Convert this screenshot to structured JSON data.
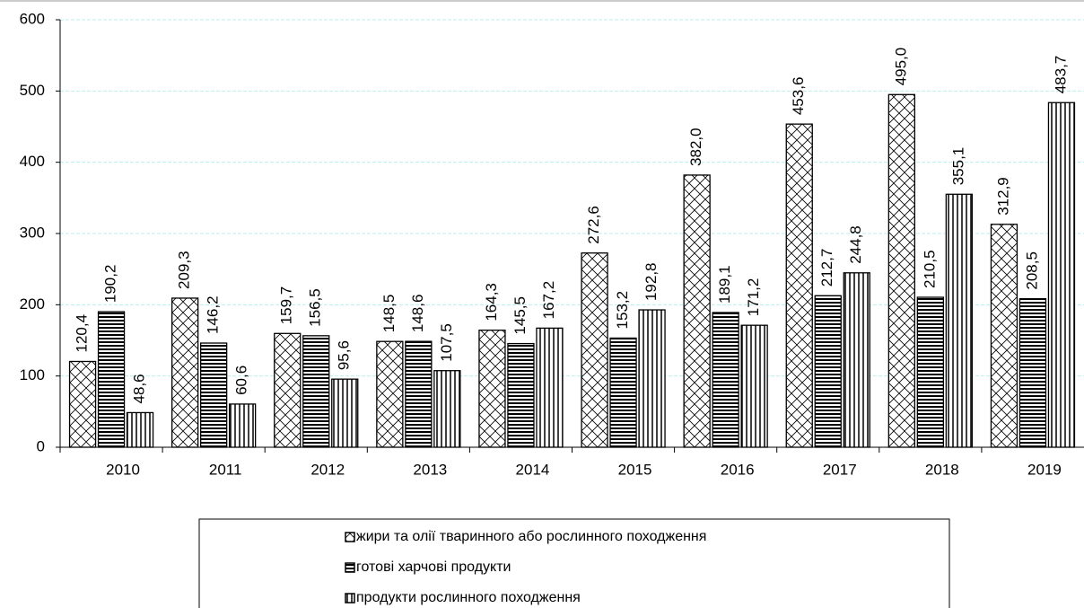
{
  "chart_data": {
    "type": "bar",
    "categories": [
      "2010",
      "2011",
      "2012",
      "2013",
      "2014",
      "2015",
      "2016",
      "2017",
      "2018",
      "2019"
    ],
    "series": [
      {
        "name": "жири та олії тваринного або рослинного походження",
        "color": "#000000",
        "values": [
          120.4,
          209.3,
          159.7,
          148.5,
          164.3,
          272.6,
          382.0,
          453.6,
          495.0,
          312.9
        ],
        "value_labels": [
          "120,4",
          "209,3",
          "159,7",
          "148,5",
          "164,3",
          "272,6",
          "382,0",
          "453,6",
          "495,0",
          "312,9"
        ]
      },
      {
        "name": "готові харчові продукти",
        "color": "#000000",
        "values": [
          190.2,
          146.2,
          156.5,
          148.6,
          145.5,
          153.2,
          189.1,
          212.7,
          210.5,
          208.5
        ],
        "value_labels": [
          "190,2",
          "146,2",
          "156,5",
          "148,6",
          "145,5",
          "153,2",
          "189,1",
          "212,7",
          "210,5",
          "208,5"
        ]
      },
      {
        "name": "продукти рослинного походження",
        "color": "#000000",
        "values": [
          48.6,
          60.6,
          95.6,
          107.5,
          167.2,
          192.8,
          171.2,
          244.8,
          355.1,
          483.7
        ],
        "value_labels": [
          "48,6",
          "60,6",
          "95,6",
          "107,5",
          "167,2",
          "192,8",
          "171,2",
          "244,8",
          "355,1",
          "483,7"
        ]
      }
    ],
    "ylim": [
      0,
      600
    ],
    "yticks": [
      0,
      100,
      200,
      300,
      400,
      500,
      600
    ],
    "grid": true
  }
}
